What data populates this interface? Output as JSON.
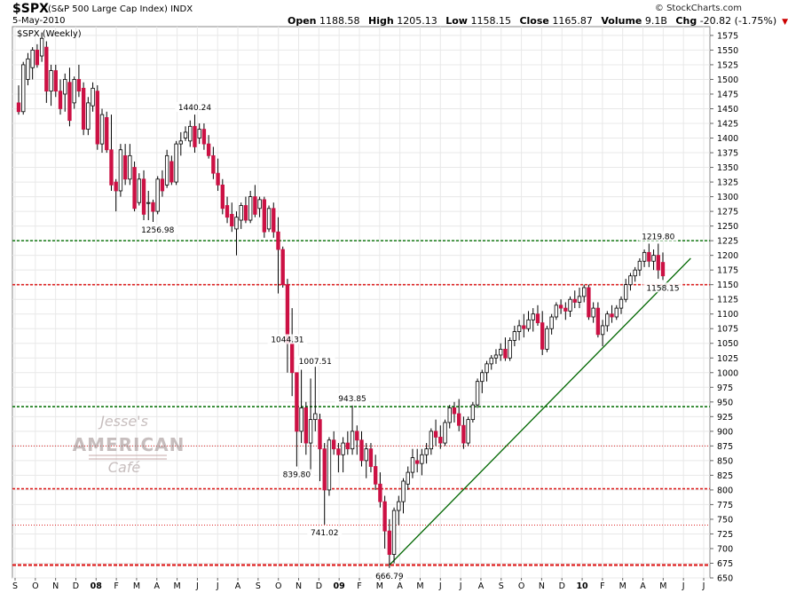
{
  "header": {
    "symbol": "$SPX",
    "name": "(S&P 500 Large Cap Index)",
    "exchange": "INDX",
    "date": "5-May-2010",
    "brand": "© StockCharts.com",
    "open_label": "Open",
    "open_value": "1188.58",
    "high_label": "High",
    "high_value": "1205.13",
    "low_label": "Low",
    "low_value": "1158.15",
    "close_label": "Close",
    "close_value": "1165.87",
    "volume_label": "Volume",
    "volume_value": "9.1B",
    "chg_label": "Chg",
    "chg_value": "-20.82 (-1.75%)"
  },
  "colors": {
    "up": "#ffffff",
    "down": "#cc1144",
    "wick": "#000000",
    "grid": "#e8e8e8",
    "trend": "#006600",
    "green_line": "#117711",
    "red_line": "#dd2222"
  },
  "chart_data": {
    "type": "candlestick",
    "title": "$SPX (Weekly)",
    "ylim": [
      650,
      1590
    ],
    "y_ticks": [
      650,
      675,
      700,
      725,
      750,
      775,
      800,
      825,
      850,
      875,
      900,
      925,
      950,
      975,
      1000,
      1025,
      1050,
      1075,
      1100,
      1125,
      1150,
      1175,
      1200,
      1225,
      1250,
      1275,
      1300,
      1325,
      1350,
      1375,
      1400,
      1425,
      1450,
      1475,
      1500,
      1525,
      1550,
      1575
    ],
    "x_tick_labels": [
      "S",
      "O",
      "N",
      "D",
      "08",
      "F",
      "M",
      "A",
      "M",
      "J",
      "J",
      "A",
      "S",
      "O",
      "N",
      "D",
      "09",
      "F",
      "M",
      "A",
      "M",
      "J",
      "J",
      "A",
      "S",
      "O",
      "N",
      "D",
      "10",
      "F",
      "M",
      "A",
      "M",
      "J",
      "J"
    ],
    "annotations": [
      {
        "text": "1440.24",
        "week": 38,
        "value": 1440.24,
        "pos": "above"
      },
      {
        "text": "1256.98",
        "week": 30,
        "value": 1256.98,
        "pos": "below"
      },
      {
        "text": "1044.31",
        "week": 58,
        "value": 1044.31,
        "pos": "above"
      },
      {
        "text": "1007.51",
        "week": 64,
        "value": 1007.51,
        "pos": "above"
      },
      {
        "text": "943.85",
        "week": 72,
        "value": 943.85,
        "pos": "above"
      },
      {
        "text": "839.80",
        "week": 60,
        "value": 839.8,
        "pos": "below"
      },
      {
        "text": "741.02",
        "week": 66,
        "value": 741.02,
        "pos": "below"
      },
      {
        "text": "666.79",
        "week": 80,
        "value": 666.79,
        "pos": "below"
      },
      {
        "text": "1219.80",
        "week": 138,
        "value": 1219.8,
        "pos": "above"
      },
      {
        "text": "1158.15",
        "week": 139,
        "value": 1158.15,
        "pos": "below"
      }
    ],
    "hlines": [
      {
        "value": 1225,
        "color": "#117711",
        "style": "dense"
      },
      {
        "value": 1150,
        "color": "#dd2222",
        "style": "dense"
      },
      {
        "value": 942,
        "color": "#117711",
        "style": "dense"
      },
      {
        "value": 875,
        "color": "#dd2222",
        "style": "sparse"
      },
      {
        "value": 802,
        "color": "#dd2222",
        "style": "dense"
      },
      {
        "value": 740,
        "color": "#dd2222",
        "style": "sparse"
      },
      {
        "value": 672,
        "color": "#dd2222",
        "style": "bold"
      }
    ],
    "trendline": {
      "from": {
        "week": 80,
        "value": 672
      },
      "to": {
        "week": 145,
        "value": 1195
      }
    },
    "candles": [
      [
        1460,
        1490,
        1440,
        1445
      ],
      [
        1445,
        1530,
        1440,
        1525
      ],
      [
        1500,
        1545,
        1490,
        1535
      ],
      [
        1520,
        1555,
        1500,
        1550
      ],
      [
        1550,
        1560,
        1520,
        1525
      ],
      [
        1540,
        1580,
        1530,
        1570
      ],
      [
        1555,
        1565,
        1460,
        1480
      ],
      [
        1480,
        1525,
        1455,
        1515
      ],
      [
        1515,
        1525,
        1470,
        1480
      ],
      [
        1480,
        1500,
        1440,
        1450
      ],
      [
        1475,
        1510,
        1445,
        1500
      ],
      [
        1495,
        1520,
        1420,
        1430
      ],
      [
        1460,
        1505,
        1450,
        1500
      ],
      [
        1500,
        1525,
        1470,
        1480
      ],
      [
        1485,
        1495,
        1405,
        1415
      ],
      [
        1415,
        1470,
        1405,
        1460
      ],
      [
        1455,
        1495,
        1445,
        1485
      ],
      [
        1480,
        1490,
        1380,
        1390
      ],
      [
        1390,
        1450,
        1375,
        1440
      ],
      [
        1435,
        1445,
        1375,
        1380
      ],
      [
        1380,
        1440,
        1310,
        1320
      ],
      [
        1325,
        1330,
        1275,
        1310
      ],
      [
        1310,
        1390,
        1300,
        1380
      ],
      [
        1370,
        1390,
        1320,
        1330
      ],
      [
        1330,
        1390,
        1320,
        1370
      ],
      [
        1350,
        1360,
        1275,
        1280
      ],
      [
        1290,
        1340,
        1285,
        1330
      ],
      [
        1330,
        1345,
        1260,
        1270
      ],
      [
        1290,
        1310,
        1260,
        1290
      ],
      [
        1290,
        1295,
        1257,
        1275
      ],
      [
        1275,
        1335,
        1270,
        1330
      ],
      [
        1330,
        1345,
        1300,
        1310
      ],
      [
        1320,
        1380,
        1315,
        1370
      ],
      [
        1360,
        1370,
        1320,
        1325
      ],
      [
        1325,
        1395,
        1320,
        1390
      ],
      [
        1390,
        1410,
        1370,
        1395
      ],
      [
        1400,
        1420,
        1395,
        1410
      ],
      [
        1395,
        1430,
        1385,
        1420
      ],
      [
        1420,
        1440,
        1375,
        1385
      ],
      [
        1400,
        1425,
        1390,
        1415
      ],
      [
        1415,
        1425,
        1380,
        1390
      ],
      [
        1390,
        1405,
        1365,
        1370
      ],
      [
        1370,
        1385,
        1330,
        1340
      ],
      [
        1340,
        1365,
        1310,
        1320
      ],
      [
        1320,
        1330,
        1270,
        1280
      ],
      [
        1285,
        1300,
        1255,
        1265
      ],
      [
        1270,
        1290,
        1240,
        1250
      ],
      [
        1245,
        1275,
        1200,
        1265
      ],
      [
        1260,
        1290,
        1245,
        1285
      ],
      [
        1285,
        1300,
        1255,
        1260
      ],
      [
        1260,
        1310,
        1255,
        1300
      ],
      [
        1300,
        1320,
        1265,
        1270
      ],
      [
        1280,
        1300,
        1265,
        1295
      ],
      [
        1295,
        1300,
        1230,
        1240
      ],
      [
        1245,
        1285,
        1240,
        1280
      ],
      [
        1280,
        1290,
        1230,
        1240
      ],
      [
        1240,
        1265,
        1135,
        1210
      ],
      [
        1210,
        1215,
        1145,
        1150
      ],
      [
        1150,
        1160,
        1000,
        1050
      ],
      [
        1050,
        1110,
        960,
        1000
      ],
      [
        1000,
        1000,
        840,
        900
      ],
      [
        900,
        1005,
        880,
        940
      ],
      [
        940,
        950,
        860,
        880
      ],
      [
        880,
        990,
        830,
        920
      ],
      [
        920,
        1010,
        900,
        930
      ],
      [
        920,
        930,
        815,
        870
      ],
      [
        870,
        880,
        741,
        800
      ],
      [
        800,
        890,
        790,
        885
      ],
      [
        885,
        900,
        860,
        870
      ],
      [
        870,
        880,
        830,
        860
      ],
      [
        860,
        890,
        830,
        880
      ],
      [
        880,
        900,
        860,
        870
      ],
      [
        870,
        944,
        860,
        900
      ],
      [
        900,
        910,
        860,
        885
      ],
      [
        885,
        900,
        840,
        850
      ],
      [
        850,
        880,
        820,
        870
      ],
      [
        870,
        880,
        830,
        840
      ],
      [
        840,
        860,
        800,
        810
      ],
      [
        810,
        830,
        770,
        780
      ],
      [
        780,
        790,
        700,
        730
      ],
      [
        730,
        750,
        667,
        690
      ],
      [
        690,
        770,
        675,
        765
      ],
      [
        765,
        790,
        740,
        780
      ],
      [
        780,
        820,
        760,
        815
      ],
      [
        810,
        840,
        800,
        830
      ],
      [
        830,
        870,
        820,
        855
      ],
      [
        850,
        870,
        830,
        845
      ],
      [
        845,
        870,
        825,
        860
      ],
      [
        860,
        880,
        845,
        870
      ],
      [
        870,
        905,
        860,
        900
      ],
      [
        900,
        920,
        875,
        890
      ],
      [
        890,
        910,
        870,
        880
      ],
      [
        880,
        920,
        875,
        915
      ],
      [
        915,
        945,
        905,
        940
      ],
      [
        940,
        950,
        915,
        930
      ],
      [
        930,
        955,
        900,
        910
      ],
      [
        910,
        925,
        870,
        880
      ],
      [
        880,
        925,
        875,
        920
      ],
      [
        920,
        950,
        915,
        945
      ],
      [
        945,
        990,
        940,
        985
      ],
      [
        985,
        1005,
        965,
        1000
      ],
      [
        1000,
        1020,
        985,
        1015
      ],
      [
        1015,
        1030,
        1005,
        1025
      ],
      [
        1025,
        1040,
        1015,
        1030
      ],
      [
        1030,
        1050,
        1020,
        1040
      ],
      [
        1040,
        1060,
        1020,
        1025
      ],
      [
        1025,
        1060,
        1020,
        1055
      ],
      [
        1055,
        1080,
        1045,
        1070
      ],
      [
        1070,
        1090,
        1055,
        1080
      ],
      [
        1080,
        1100,
        1060,
        1075
      ],
      [
        1075,
        1105,
        1070,
        1090
      ],
      [
        1090,
        1110,
        1070,
        1100
      ],
      [
        1100,
        1115,
        1080,
        1085
      ],
      [
        1085,
        1105,
        1030,
        1040
      ],
      [
        1040,
        1080,
        1035,
        1075
      ],
      [
        1075,
        1100,
        1065,
        1095
      ],
      [
        1095,
        1120,
        1090,
        1115
      ],
      [
        1115,
        1125,
        1100,
        1110
      ],
      [
        1110,
        1120,
        1090,
        1105
      ],
      [
        1105,
        1130,
        1095,
        1125
      ],
      [
        1125,
        1140,
        1110,
        1120
      ],
      [
        1120,
        1145,
        1110,
        1130
      ],
      [
        1130,
        1150,
        1120,
        1145
      ],
      [
        1145,
        1150,
        1090,
        1095
      ],
      [
        1095,
        1120,
        1085,
        1110
      ],
      [
        1110,
        1120,
        1060,
        1065
      ],
      [
        1065,
        1090,
        1045,
        1080
      ],
      [
        1080,
        1105,
        1070,
        1100
      ],
      [
        1100,
        1115,
        1085,
        1095
      ],
      [
        1095,
        1115,
        1090,
        1110
      ],
      [
        1110,
        1130,
        1100,
        1125
      ],
      [
        1125,
        1160,
        1120,
        1150
      ],
      [
        1150,
        1170,
        1140,
        1165
      ],
      [
        1165,
        1180,
        1155,
        1175
      ],
      [
        1175,
        1195,
        1165,
        1190
      ],
      [
        1190,
        1210,
        1180,
        1205
      ],
      [
        1205,
        1220,
        1180,
        1190
      ],
      [
        1190,
        1210,
        1175,
        1200
      ],
      [
        1200,
        1220,
        1160,
        1175
      ],
      [
        1188,
        1205,
        1158,
        1165
      ]
    ]
  },
  "watermark": {
    "line1": "Jesse's",
    "line2": "AMERICAN",
    "line3": "Café"
  }
}
